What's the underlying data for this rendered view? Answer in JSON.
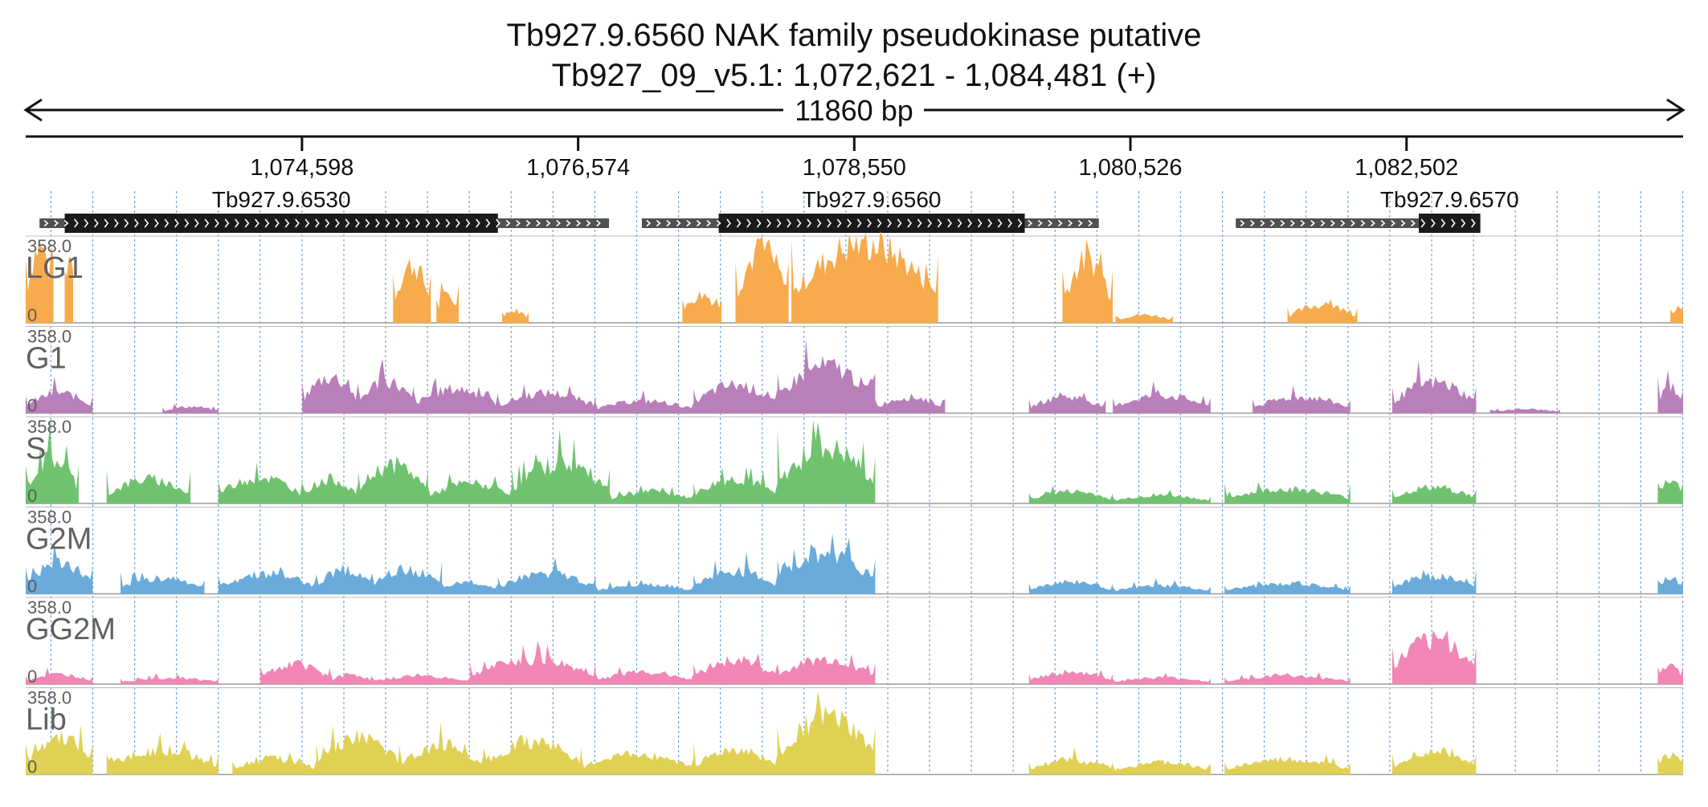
{
  "title": {
    "line1": "Tb927.9.6560  NAK family pseudokinase  putative",
    "line2": "Tb927_09_v5.1: 1,072,621 - 1,084,481 (+)"
  },
  "region": {
    "start": 1072621,
    "end": 1084481,
    "span_label": "11860 bp"
  },
  "ruler": {
    "ticks": [
      {
        "pos": 1074598,
        "label": "1,074,598"
      },
      {
        "pos": 1076574,
        "label": "1,076,574"
      },
      {
        "pos": 1078550,
        "label": "1,078,550"
      },
      {
        "pos": 1080526,
        "label": "1,080,526"
      },
      {
        "pos": 1082502,
        "label": "1,082,502"
      }
    ]
  },
  "genes": [
    {
      "name": "Tb927.9.6530",
      "transcript": [
        1072720,
        1076795
      ],
      "cds": [
        1072900,
        1076000
      ]
    },
    {
      "name": "Tb927.9.6560",
      "transcript": [
        1077030,
        1080300
      ],
      "cds": [
        1077580,
        1079770
      ]
    },
    {
      "name": "Tb927.9.6570",
      "transcript": [
        1081280,
        1083030
      ],
      "cds": [
        1082590,
        1083030
      ]
    }
  ],
  "tracks": [
    {
      "name": "LG1",
      "max_label": "358.0",
      "min_label": "0",
      "color": "#f7ab4c"
    },
    {
      "name": "G1",
      "max_label": "358.0",
      "min_label": "0",
      "color": "#b97fba"
    },
    {
      "name": "S",
      "max_label": "358.0",
      "min_label": "0",
      "color": "#6fc36f"
    },
    {
      "name": "G2M",
      "max_label": "358.0",
      "min_label": "0",
      "color": "#6aabdc"
    },
    {
      "name": "GG2M",
      "max_label": "358.0",
      "min_label": "0",
      "color": "#f286b6"
    },
    {
      "name": "Lib",
      "max_label": "358.0",
      "min_label": "0",
      "color": "#e0d155"
    }
  ],
  "colors": {
    "gene_cds": "#1a1a1a",
    "gene_utr": "#505050",
    "grid": "#6fa7d9",
    "axis": "#111111",
    "label_grey": "#5e5e5e"
  }
}
